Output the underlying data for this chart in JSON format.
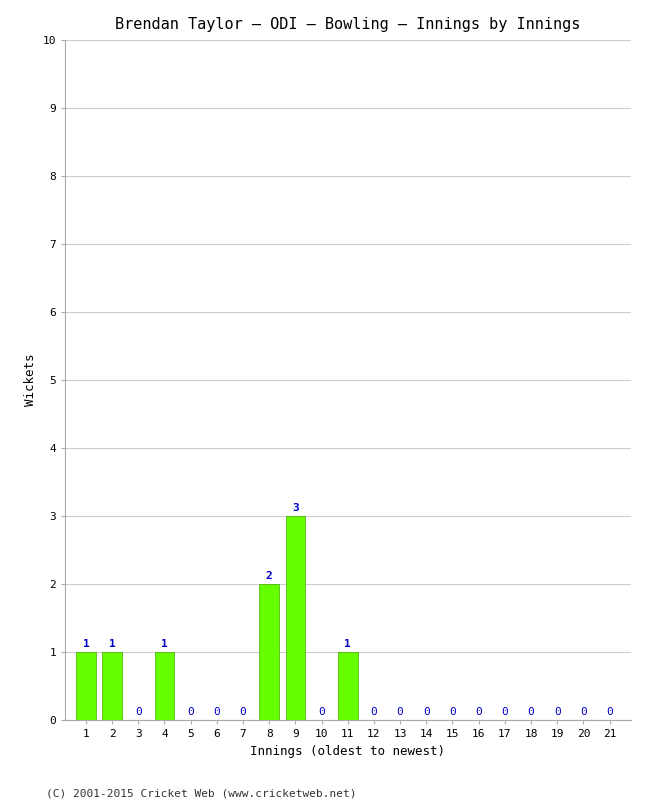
{
  "title": "Brendan Taylor – ODI – Bowling – Innings by Innings",
  "xlabel": "Innings (oldest to newest)",
  "ylabel": "Wickets",
  "innings": [
    1,
    2,
    3,
    4,
    5,
    6,
    7,
    8,
    9,
    10,
    11,
    12,
    13,
    14,
    15,
    16,
    17,
    18,
    19,
    20,
    21
  ],
  "wickets": [
    1,
    1,
    0,
    1,
    0,
    0,
    0,
    2,
    3,
    0,
    1,
    0,
    0,
    0,
    0,
    0,
    0,
    0,
    0,
    0,
    0
  ],
  "bar_color": "#66ff00",
  "bar_edge_color": "#44aa00",
  "label_color": "#0000cc",
  "zero_label_color": "#0000cc",
  "ylim": [
    0,
    10
  ],
  "yticks": [
    0,
    1,
    2,
    3,
    4,
    5,
    6,
    7,
    8,
    9,
    10
  ],
  "bg_color": "#ffffff",
  "plot_bg_color": "#ffffff",
  "grid_color": "#cccccc",
  "copyright": "(C) 2001-2015 Cricket Web (www.cricketweb.net)",
  "title_fontsize": 11,
  "label_fontsize": 9,
  "tick_fontsize": 8,
  "bar_label_fontsize": 8,
  "copyright_fontsize": 8
}
